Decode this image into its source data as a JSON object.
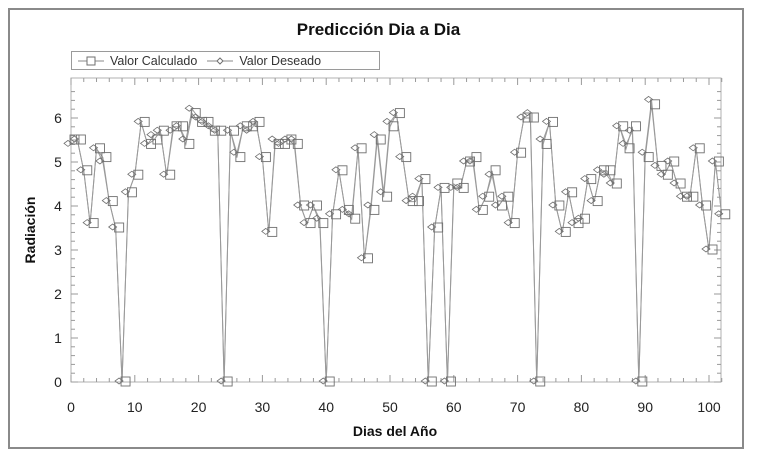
{
  "chart_data": {
    "type": "line",
    "title": "Predicción Dia a Dia",
    "xlabel": "Dias del Año",
    "ylabel": "Radiación",
    "xlim": [
      0,
      102
    ],
    "ylim": [
      0,
      6.9
    ],
    "xticks": [
      0,
      10,
      20,
      30,
      40,
      50,
      60,
      70,
      80,
      90,
      100
    ],
    "yticks": [
      0,
      1,
      2,
      3,
      4,
      5,
      6
    ],
    "grid": false,
    "legend_position": "top-left",
    "x": [
      0,
      1,
      2,
      3,
      4,
      5,
      6,
      7,
      8,
      9,
      10,
      11,
      12,
      13,
      14,
      15,
      16,
      17,
      18,
      19,
      20,
      21,
      22,
      23,
      24,
      25,
      26,
      27,
      28,
      29,
      30,
      31,
      32,
      33,
      34,
      35,
      36,
      37,
      38,
      39,
      40,
      41,
      42,
      43,
      44,
      45,
      46,
      47,
      48,
      49,
      50,
      51,
      52,
      53,
      54,
      55,
      56,
      57,
      58,
      59,
      60,
      61,
      62,
      63,
      64,
      65,
      66,
      67,
      68,
      69,
      70,
      71,
      72,
      73,
      74,
      75,
      76,
      77,
      78,
      79,
      80,
      81,
      82,
      83,
      84,
      85,
      86,
      87,
      88,
      89,
      90,
      91,
      92,
      93,
      94,
      95,
      96,
      97,
      98,
      99,
      100,
      101,
      102
    ],
    "series": [
      {
        "name": "Valor Calculado",
        "marker": "square",
        "values": [
          5.5,
          5.5,
          4.8,
          3.6,
          5.3,
          5.1,
          4.1,
          3.5,
          0,
          4.3,
          4.7,
          5.9,
          5.4,
          5.5,
          5.7,
          4.7,
          5.8,
          5.8,
          5.4,
          6.1,
          5.9,
          5.9,
          5.7,
          5.7,
          0,
          5.7,
          5.1,
          5.8,
          5.8,
          5.9,
          5.1,
          3.4,
          5.4,
          5.4,
          5.5,
          5.4,
          4.0,
          3.6,
          4.0,
          3.6,
          0,
          3.8,
          4.8,
          3.9,
          3.7,
          5.3,
          2.8,
          3.9,
          5.5,
          4.2,
          5.8,
          6.1,
          5.1,
          4.1,
          4.1,
          4.6,
          0,
          3.5,
          4.4,
          0,
          4.5,
          4.4,
          5.0,
          5.1,
          3.9,
          4.2,
          4.8,
          4.0,
          4.2,
          3.6,
          5.2,
          6.0,
          6.0,
          0,
          5.4,
          5.9,
          4.0,
          3.4,
          4.3,
          3.6,
          3.7,
          4.6,
          4.1,
          4.8,
          4.8,
          4.5,
          5.8,
          5.3,
          5.8,
          0,
          5.1,
          6.3,
          4.9,
          4.7,
          5.0,
          4.5,
          4.2,
          4.2,
          5.3,
          4.0,
          3.0,
          5.0,
          3.8
        ]
      },
      {
        "name": "Valor Deseado",
        "marker": "diamond",
        "values": [
          5.4,
          5.5,
          4.8,
          3.6,
          5.3,
          5.0,
          4.1,
          3.5,
          0,
          4.3,
          4.7,
          5.9,
          5.4,
          5.6,
          5.7,
          4.7,
          5.7,
          5.8,
          5.5,
          6.2,
          6.0,
          5.9,
          5.8,
          5.7,
          0,
          5.7,
          5.2,
          5.8,
          5.7,
          5.9,
          5.1,
          3.4,
          5.5,
          5.4,
          5.5,
          5.5,
          4.0,
          3.6,
          4.0,
          3.7,
          0,
          3.8,
          4.8,
          3.9,
          3.8,
          5.3,
          2.8,
          4.0,
          5.6,
          4.3,
          5.9,
          6.1,
          5.1,
          4.1,
          4.2,
          4.6,
          0,
          3.5,
          4.4,
          0,
          4.4,
          4.4,
          5.0,
          5.0,
          3.9,
          4.2,
          4.7,
          4.0,
          4.2,
          3.6,
          5.2,
          6.0,
          6.1,
          0,
          5.5,
          5.9,
          4.0,
          3.4,
          4.3,
          3.6,
          3.7,
          4.6,
          4.1,
          4.8,
          4.7,
          4.5,
          5.8,
          5.4,
          5.7,
          0,
          5.2,
          6.4,
          4.9,
          4.7,
          5.0,
          4.5,
          4.2,
          4.2,
          5.3,
          4.0,
          3.0,
          5.0,
          3.8
        ]
      }
    ]
  },
  "legend": {
    "items": [
      {
        "label": "Valor Calculado",
        "marker": "square-icon"
      },
      {
        "label": "Valor Deseado",
        "marker": "diamond-icon"
      }
    ]
  },
  "colors": {
    "line": "#9a9a9a",
    "marker": "#6f6f6f",
    "frame": "#8a8a8a",
    "text": "#111111"
  }
}
